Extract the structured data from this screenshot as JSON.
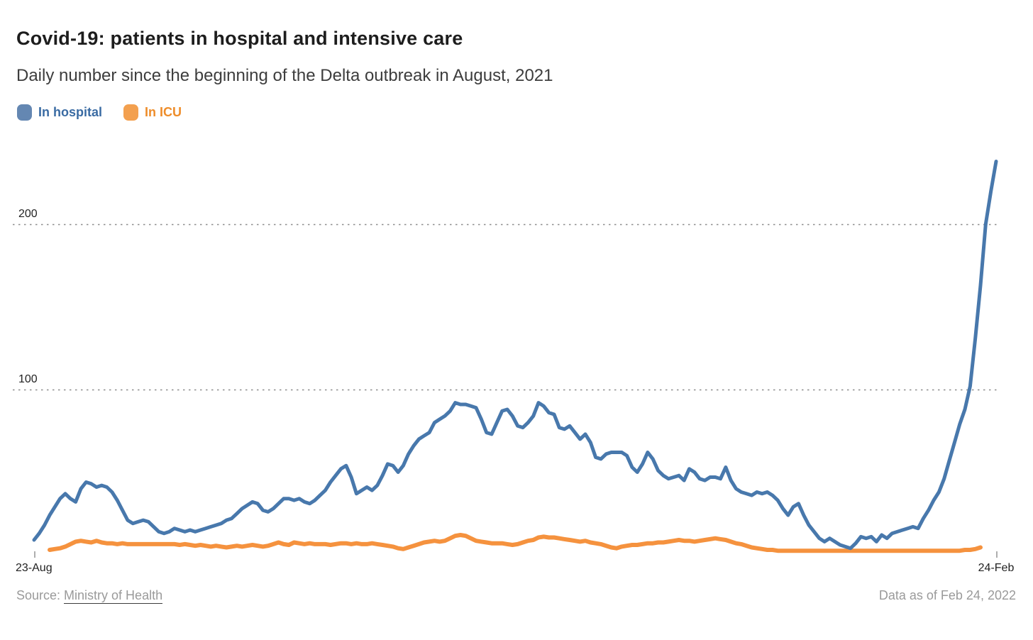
{
  "header": {
    "title": "Covid-19: patients in hospital and intensive care",
    "subtitle": "Daily number since the beginning of the Delta outbreak in August, 2021"
  },
  "legend": {
    "items": [
      {
        "label": "In hospital",
        "color": "#4878ac",
        "swatch_color": "#6487b2",
        "text_color": "#3a6ba3"
      },
      {
        "label": "In ICU",
        "color": "#f5923e",
        "swatch_color": "#f3a04f",
        "text_color": "#ee8d2a"
      }
    ]
  },
  "footer": {
    "source_prefix": "Source: ",
    "source_link": "Ministry of Health",
    "data_as_of": "Data as of Feb 24, 2022"
  },
  "chart_data": {
    "type": "line",
    "title": "Covid-19: patients in hospital and intensive care",
    "subtitle": "Daily number since the beginning of the Delta outbreak in August, 2021",
    "xlabel": "",
    "ylabel": "",
    "x_range_labels": {
      "first": "23-Aug",
      "last": "24-Feb"
    },
    "y_ticks": [
      100,
      200
    ],
    "y_tick_labels": {
      "y200": "200",
      "y100": "100"
    },
    "ylim": [
      0,
      240
    ],
    "grid": "horizontal-dotted",
    "legend_position": "top-left",
    "x_unit": "day",
    "x_points": 186,
    "series": [
      {
        "name": "In hospital",
        "color": "#4878ac",
        "values": [
          9,
          13,
          18,
          24,
          29,
          34,
          37,
          34,
          32,
          40,
          44,
          43,
          41,
          42,
          41,
          38,
          33,
          27,
          21,
          19,
          20,
          21,
          20,
          17,
          14,
          13,
          14,
          16,
          15,
          14,
          15,
          14,
          15,
          16,
          17,
          18,
          19,
          21,
          22,
          25,
          28,
          30,
          32,
          31,
          27,
          26,
          28,
          31,
          34,
          34,
          33,
          34,
          32,
          31,
          33,
          36,
          39,
          44,
          48,
          52,
          54,
          47,
          37,
          39,
          41,
          39,
          42,
          48,
          55,
          54,
          50,
          54,
          61,
          66,
          70,
          72,
          74,
          80,
          82,
          84,
          87,
          92,
          91,
          91,
          90,
          89,
          82,
          74,
          73,
          80,
          87,
          88,
          84,
          78,
          77,
          80,
          84,
          92,
          90,
          86,
          85,
          77,
          76,
          78,
          74,
          70,
          73,
          68,
          59,
          58,
          61,
          62,
          62,
          62,
          60,
          53,
          50,
          55,
          62,
          58,
          51,
          48,
          46,
          47,
          48,
          45,
          52,
          50,
          46,
          45,
          47,
          47,
          46,
          53,
          45,
          40,
          38,
          37,
          36,
          38,
          37,
          38,
          36,
          33,
          28,
          24,
          29,
          31,
          24,
          18,
          14,
          10,
          8,
          10,
          8,
          6,
          5,
          4,
          7,
          11,
          10,
          11,
          8,
          12,
          10,
          13,
          14,
          15,
          16,
          17,
          16,
          22,
          27,
          33,
          38,
          46,
          57,
          68,
          79,
          88,
          102,
          131,
          163,
          200,
          220,
          238
        ]
      },
      {
        "name": "In ICU",
        "color": "#f5923e",
        "values": [
          null,
          null,
          null,
          3,
          3.5,
          4,
          5,
          6.5,
          8,
          8.5,
          8,
          7.5,
          8.5,
          7.5,
          7,
          7,
          6.5,
          7,
          6.5,
          6.5,
          6.5,
          6.5,
          6.5,
          6.5,
          6.5,
          6.5,
          6.5,
          6.5,
          6,
          6.5,
          6,
          5.5,
          6,
          5.5,
          5,
          5.5,
          5,
          4.5,
          5,
          5.5,
          5,
          5.5,
          6,
          5.5,
          5,
          5.5,
          6.5,
          7.5,
          6.5,
          6,
          7.5,
          7,
          6.5,
          7,
          6.5,
          6.5,
          6.5,
          6,
          6.5,
          7,
          7,
          6.5,
          7,
          6.5,
          6.5,
          7,
          6.5,
          6,
          5.5,
          5,
          4,
          3.5,
          4.5,
          5.5,
          6.5,
          7.5,
          8,
          8.5,
          8,
          8.5,
          10,
          11.5,
          12,
          11.5,
          10,
          8.5,
          8,
          7.5,
          7,
          7,
          7,
          6.5,
          6,
          6.5,
          7.5,
          8.5,
          9,
          10.5,
          11,
          10.5,
          10.5,
          10,
          9.5,
          9,
          8.5,
          8,
          8.5,
          7.5,
          7,
          6.5,
          5.5,
          4.5,
          4,
          5,
          5.5,
          6,
          6,
          6.5,
          7,
          7,
          7.5,
          7.5,
          8,
          8.5,
          9,
          8.5,
          8.5,
          8,
          8.5,
          9,
          9.5,
          10,
          9.5,
          9,
          8,
          7,
          6.5,
          5.5,
          4.5,
          4,
          3.5,
          3,
          3,
          2.5,
          2.5,
          2.5,
          2.5,
          2.5,
          2.5,
          2.5,
          2.5,
          2.5,
          2.5,
          2.5,
          2.5,
          2.5,
          2.5,
          2.5,
          2.5,
          2.5,
          2.5,
          2.5,
          2.5,
          2.5,
          2.5,
          2.5,
          2.5,
          2.5,
          2.5,
          2.5,
          2.5,
          2.5,
          2.5,
          2.5,
          2.5,
          2.5,
          2.5,
          2.5,
          2.5,
          3,
          3,
          3.5,
          4.5
        ]
      }
    ]
  }
}
